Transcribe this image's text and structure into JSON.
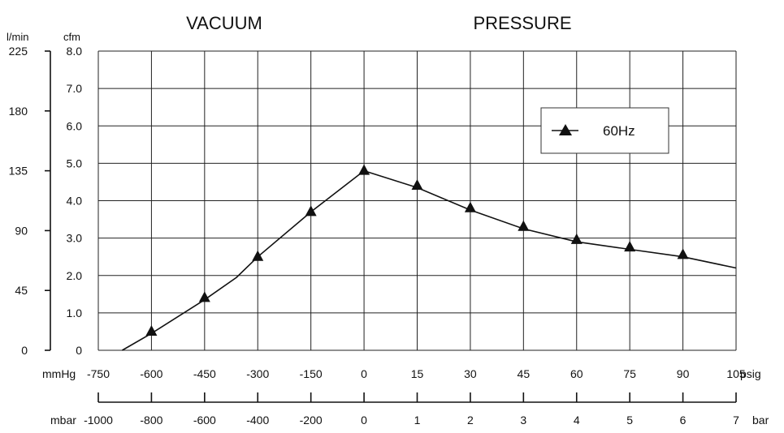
{
  "chart_data": {
    "type": "line",
    "headers": {
      "vacuum": "VACUUM",
      "pressure": "PRESSURE"
    },
    "left_axes": {
      "lmin": {
        "unit": "l/min",
        "ticks": [
          "225",
          "180",
          "135",
          "90",
          "45",
          "0"
        ]
      },
      "cfm": {
        "unit": "cfm",
        "ticks": [
          "8.0",
          "7.0",
          "6.0",
          "5.0",
          "4.0",
          "3.0",
          "2.0",
          "1.0",
          "0"
        ]
      }
    },
    "ylim": [
      0,
      8
    ],
    "bottom_axes": {
      "row1": {
        "left_unit": "mmHg",
        "right_unit": "psig",
        "ticks": [
          "-750",
          "-600",
          "-450",
          "-300",
          "-150",
          "0",
          "15",
          "30",
          "45",
          "60",
          "75",
          "90",
          "105"
        ]
      },
      "row2": {
        "left_unit": "mbar",
        "right_unit": "bar",
        "ticks": [
          "-1000",
          "-800",
          "-600",
          "-400",
          "-200",
          "0",
          "1",
          "2",
          "3",
          "4",
          "5",
          "6",
          "7"
        ]
      }
    },
    "grid": true,
    "legend": {
      "position": "top-right",
      "entries": [
        "60Hz"
      ]
    },
    "series": [
      {
        "name": "60Hz",
        "marker": "triangle",
        "x_index": [
          1,
          2,
          3,
          4,
          5,
          6,
          7,
          8,
          9,
          10,
          11
        ],
        "x_labels": [
          "-600",
          "-450",
          "-300",
          "-150",
          "0",
          "15",
          "30",
          "45",
          "60",
          "75",
          "90"
        ],
        "values": [
          0.5,
          1.4,
          2.5,
          3.7,
          4.8,
          4.4,
          3.8,
          3.3,
          2.95,
          2.75,
          2.55
        ]
      }
    ],
    "curve": {
      "x_index": [
        0.45,
        1,
        2,
        2.6,
        3,
        4,
        5,
        6,
        7,
        8,
        9,
        10,
        11,
        12
      ],
      "values": [
        0,
        0.45,
        1.35,
        1.95,
        2.5,
        3.7,
        4.8,
        4.35,
        3.75,
        3.25,
        2.9,
        2.7,
        2.5,
        2.2
      ]
    }
  }
}
